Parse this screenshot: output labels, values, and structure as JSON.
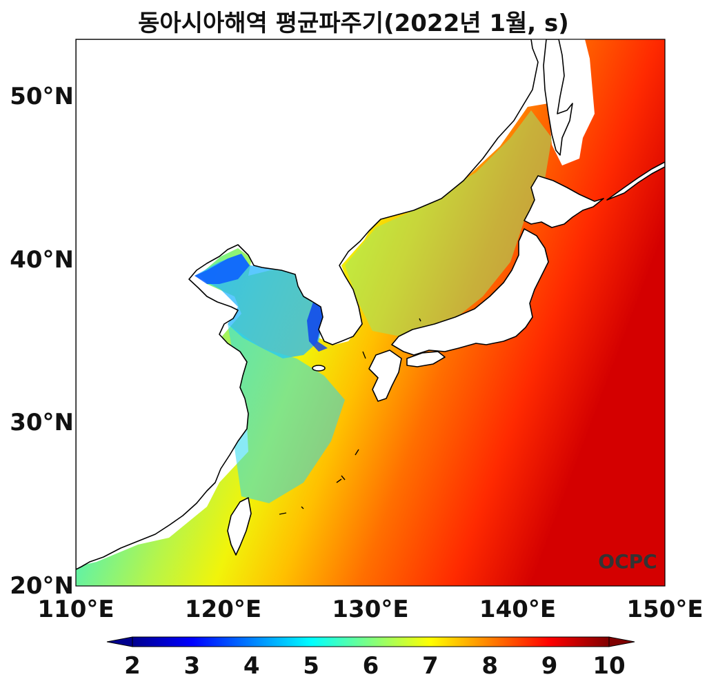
{
  "title": "동아시아해역 평균파주기(2022년 1월, s)",
  "watermark": "OCPC",
  "axes": {
    "lon_range": [
      110,
      150
    ],
    "lat_range": [
      20,
      53.5
    ],
    "x_ticks": [
      {
        "value": 110,
        "label": "110°E"
      },
      {
        "value": 120,
        "label": "120°E"
      },
      {
        "value": 130,
        "label": "130°E"
      },
      {
        "value": 140,
        "label": "140°E"
      },
      {
        "value": 150,
        "label": "150°E"
      }
    ],
    "y_ticks": [
      {
        "value": 20,
        "label": "20°N"
      },
      {
        "value": 30,
        "label": "30°N"
      },
      {
        "value": 40,
        "label": "40°N"
      },
      {
        "value": 50,
        "label": "50°N"
      }
    ]
  },
  "colorbar": {
    "min": 2,
    "max": 10,
    "ticks": [
      "2",
      "3",
      "4",
      "5",
      "6",
      "7",
      "8",
      "9",
      "10"
    ],
    "colormap": "jet",
    "extend": "both",
    "colors": [
      "#00008f",
      "#0000ff",
      "#0080ff",
      "#00ffff",
      "#80ff80",
      "#ffff00",
      "#ff8000",
      "#ff0000",
      "#800000"
    ]
  },
  "colors": {
    "land": "#ffffff",
    "coastline": "#000000",
    "watermark": "#333333"
  }
}
